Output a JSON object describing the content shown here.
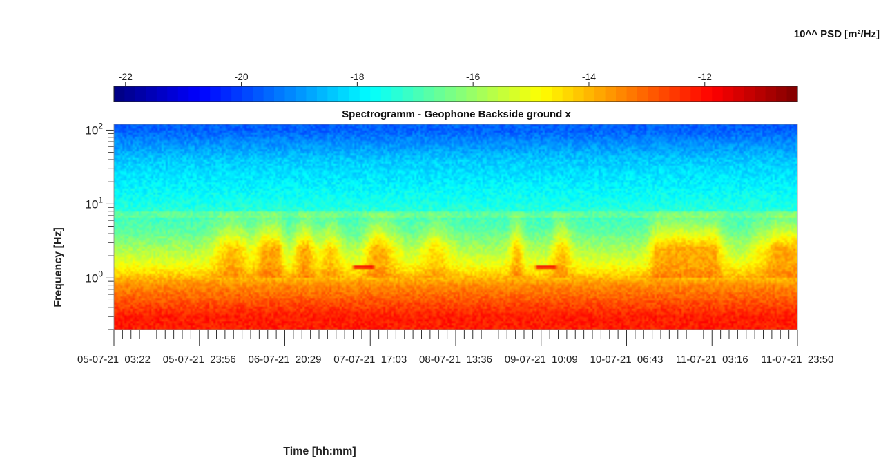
{
  "chart_data": {
    "type": "heatmap",
    "title": "Spectrogramm - Geophone Backside ground x",
    "xlabel": "Time [hh:mm]",
    "ylabel": "Frequency [Hz]",
    "yscale": "log",
    "ylim": [
      0.2,
      120
    ],
    "y_ticks": [
      {
        "value": 1,
        "base": "10",
        "exp": "0"
      },
      {
        "value": 10,
        "base": "10",
        "exp": "1"
      },
      {
        "value": 100,
        "base": "10",
        "exp": "2"
      }
    ],
    "x_ticks": [
      "05-07-21  03:22",
      "05-07-21  23:56",
      "06-07-21  20:29",
      "07-07-21  17:03",
      "08-07-21  13:36",
      "09-07-21  10:09",
      "10-07-21  06:43",
      "11-07-21  03:16",
      "11-07-21  23:50"
    ],
    "colorbar": {
      "label": "10^^ PSD [m²/Hz]",
      "colormap": "jet",
      "range": [
        -22.2,
        -10.4
      ],
      "ticks": [
        -22,
        -20,
        -18,
        -16,
        -14,
        -12
      ]
    },
    "levels": [
      {
        "frequency": 100,
        "log_psd": -19.6
      },
      {
        "frequency": 40,
        "log_psd": -18.4
      },
      {
        "frequency": 10,
        "log_psd": -17.5
      },
      {
        "frequency": 4,
        "log_psd": -16.6
      },
      {
        "frequency": 1.5,
        "log_psd": -15.0
      },
      {
        "frequency": 0.8,
        "log_psd": -13.5
      },
      {
        "frequency": 0.3,
        "log_psd": -12.2
      }
    ],
    "events": [
      {
        "time_fraction": 0.365,
        "frequency": 1.4,
        "log_psd": -11.8
      },
      {
        "time_fraction": 0.632,
        "frequency": 1.4,
        "log_psd": -11.8
      }
    ]
  }
}
